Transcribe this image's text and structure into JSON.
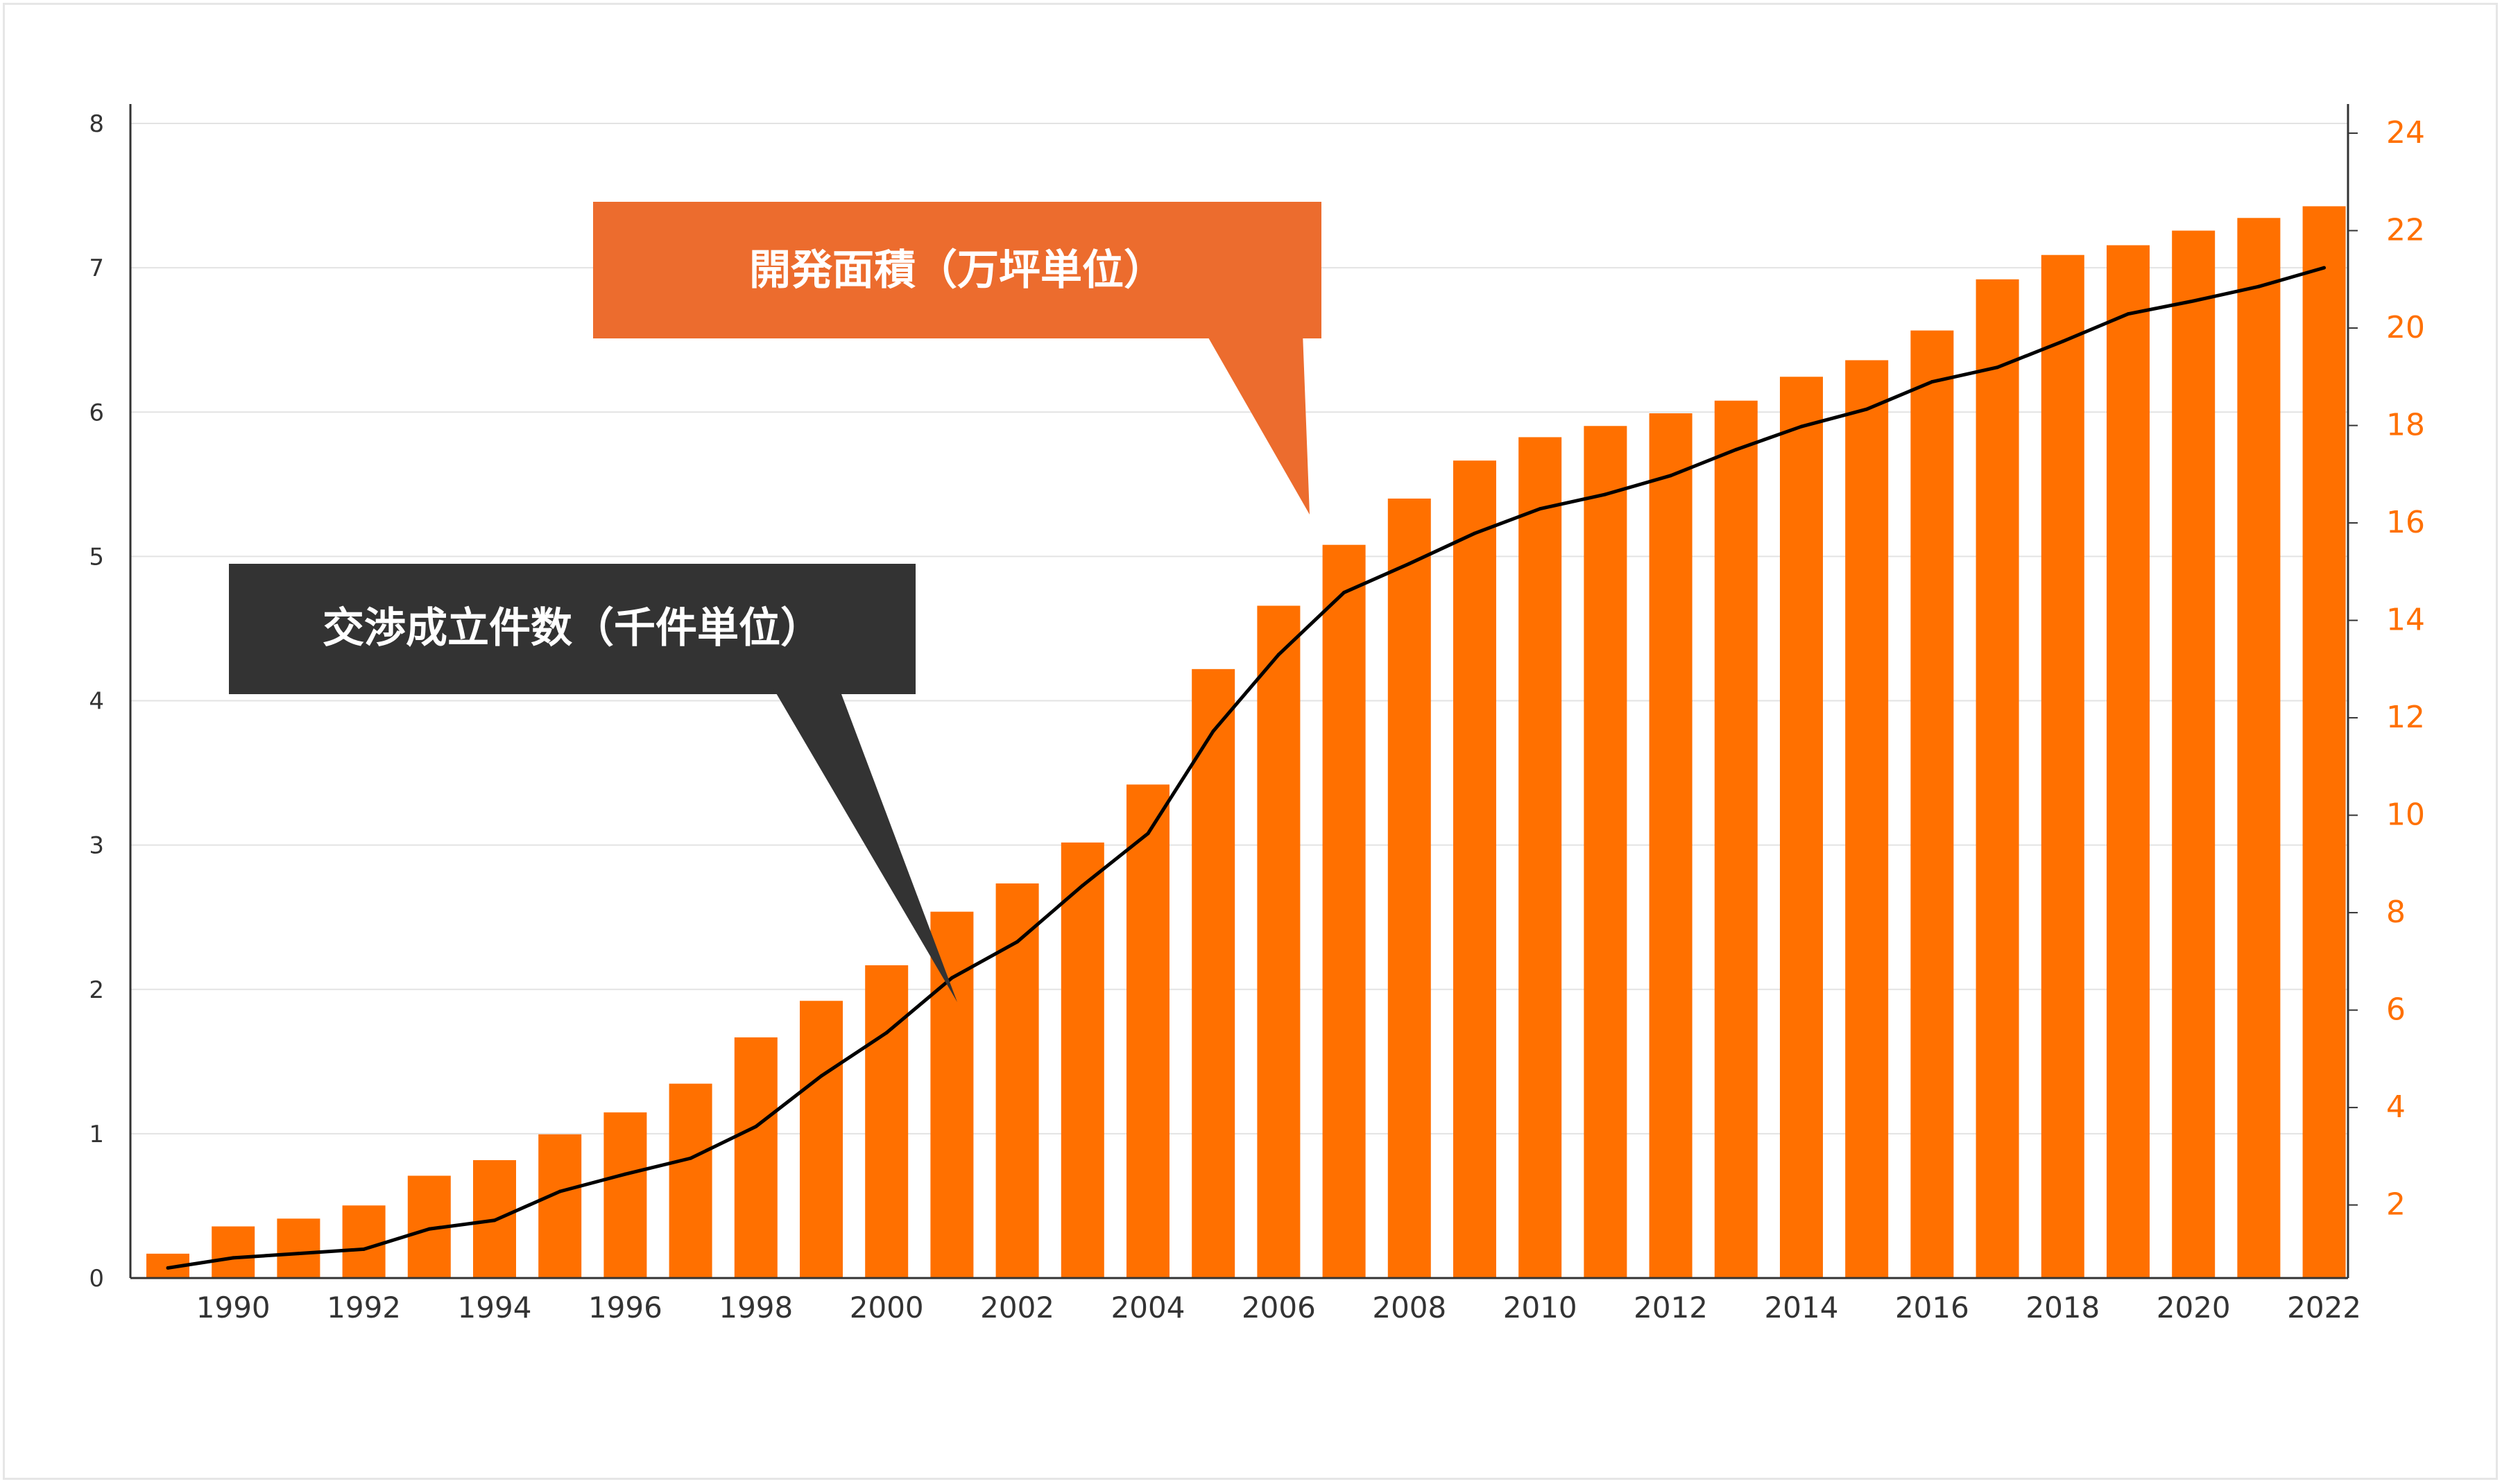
{
  "chart_data": {
    "type": "bar+line",
    "title": "",
    "xlabel": "",
    "ylabel": "",
    "x": [
      1989,
      1990,
      1991,
      1992,
      1993,
      1994,
      1995,
      1996,
      1997,
      1998,
      1999,
      2000,
      2001,
      2002,
      2003,
      2004,
      2005,
      2006,
      2007,
      2008,
      2009,
      2010,
      2011,
      2012,
      2013,
      2014,
      2015,
      2016,
      2017,
      2018,
      2019,
      2020,
      2021,
      2022
    ],
    "x_tick_labels": [
      "1990",
      "1992",
      "1994",
      "1996",
      "1998",
      "2000",
      "2002",
      "2004",
      "2006",
      "2008",
      "2010",
      "2012",
      "2014",
      "2016",
      "2018",
      "2020",
      "2022"
    ],
    "y_left": {
      "ylim": [
        0,
        8
      ],
      "ticks": [
        0,
        1,
        2,
        3,
        4,
        5,
        6,
        7,
        8
      ]
    },
    "y_right": {
      "ylim": [
        0.5,
        24.2
      ],
      "ticks": [
        2,
        4,
        6,
        8,
        10,
        12,
        14,
        16,
        18,
        20,
        22,
        24
      ],
      "color": "#ff7000"
    },
    "grid": true,
    "series": [
      {
        "name": "開発面積（万坪単位）",
        "type": "bar",
        "axis": "right",
        "color": "#ff7000",
        "values": [
          1.0,
          1.56,
          1.72,
          1.99,
          2.6,
          2.92,
          3.45,
          3.9,
          4.49,
          5.44,
          6.19,
          6.92,
          8.02,
          8.6,
          9.44,
          10.63,
          13.0,
          14.3,
          15.55,
          16.5,
          17.28,
          17.76,
          17.99,
          18.25,
          18.51,
          19.0,
          19.34,
          19.95,
          21.0,
          21.5,
          21.7,
          22.0,
          22.26,
          22.5
        ]
      },
      {
        "name": "交渉成立件数（千件単位）",
        "type": "line",
        "axis": "left",
        "color": "#000000",
        "values": [
          0.07,
          0.14,
          0.17,
          0.2,
          0.34,
          0.4,
          0.6,
          0.72,
          0.83,
          1.05,
          1.4,
          1.7,
          2.08,
          2.33,
          2.72,
          3.08,
          3.79,
          4.32,
          4.75,
          4.95,
          5.16,
          5.33,
          5.43,
          5.56,
          5.74,
          5.9,
          6.02,
          6.21,
          6.31,
          6.49,
          6.68,
          6.77,
          6.87,
          7.0
        ]
      }
    ],
    "annotations": [
      {
        "text": "開発面積（万坪単位）",
        "box_color": "#ec6c2e",
        "text_color": "#ffffff"
      },
      {
        "text": "交渉成立件数（千件単位）",
        "box_color": "#333333",
        "text_color": "#ffffff"
      }
    ]
  },
  "colors": {
    "bar": "#ff7000",
    "line": "#000000",
    "grid": "#e3e3e3",
    "axis": "#333333",
    "left_tick_text": "#333333",
    "right_tick_text": "#ff7000",
    "frame_border": "#e6e6e6"
  }
}
